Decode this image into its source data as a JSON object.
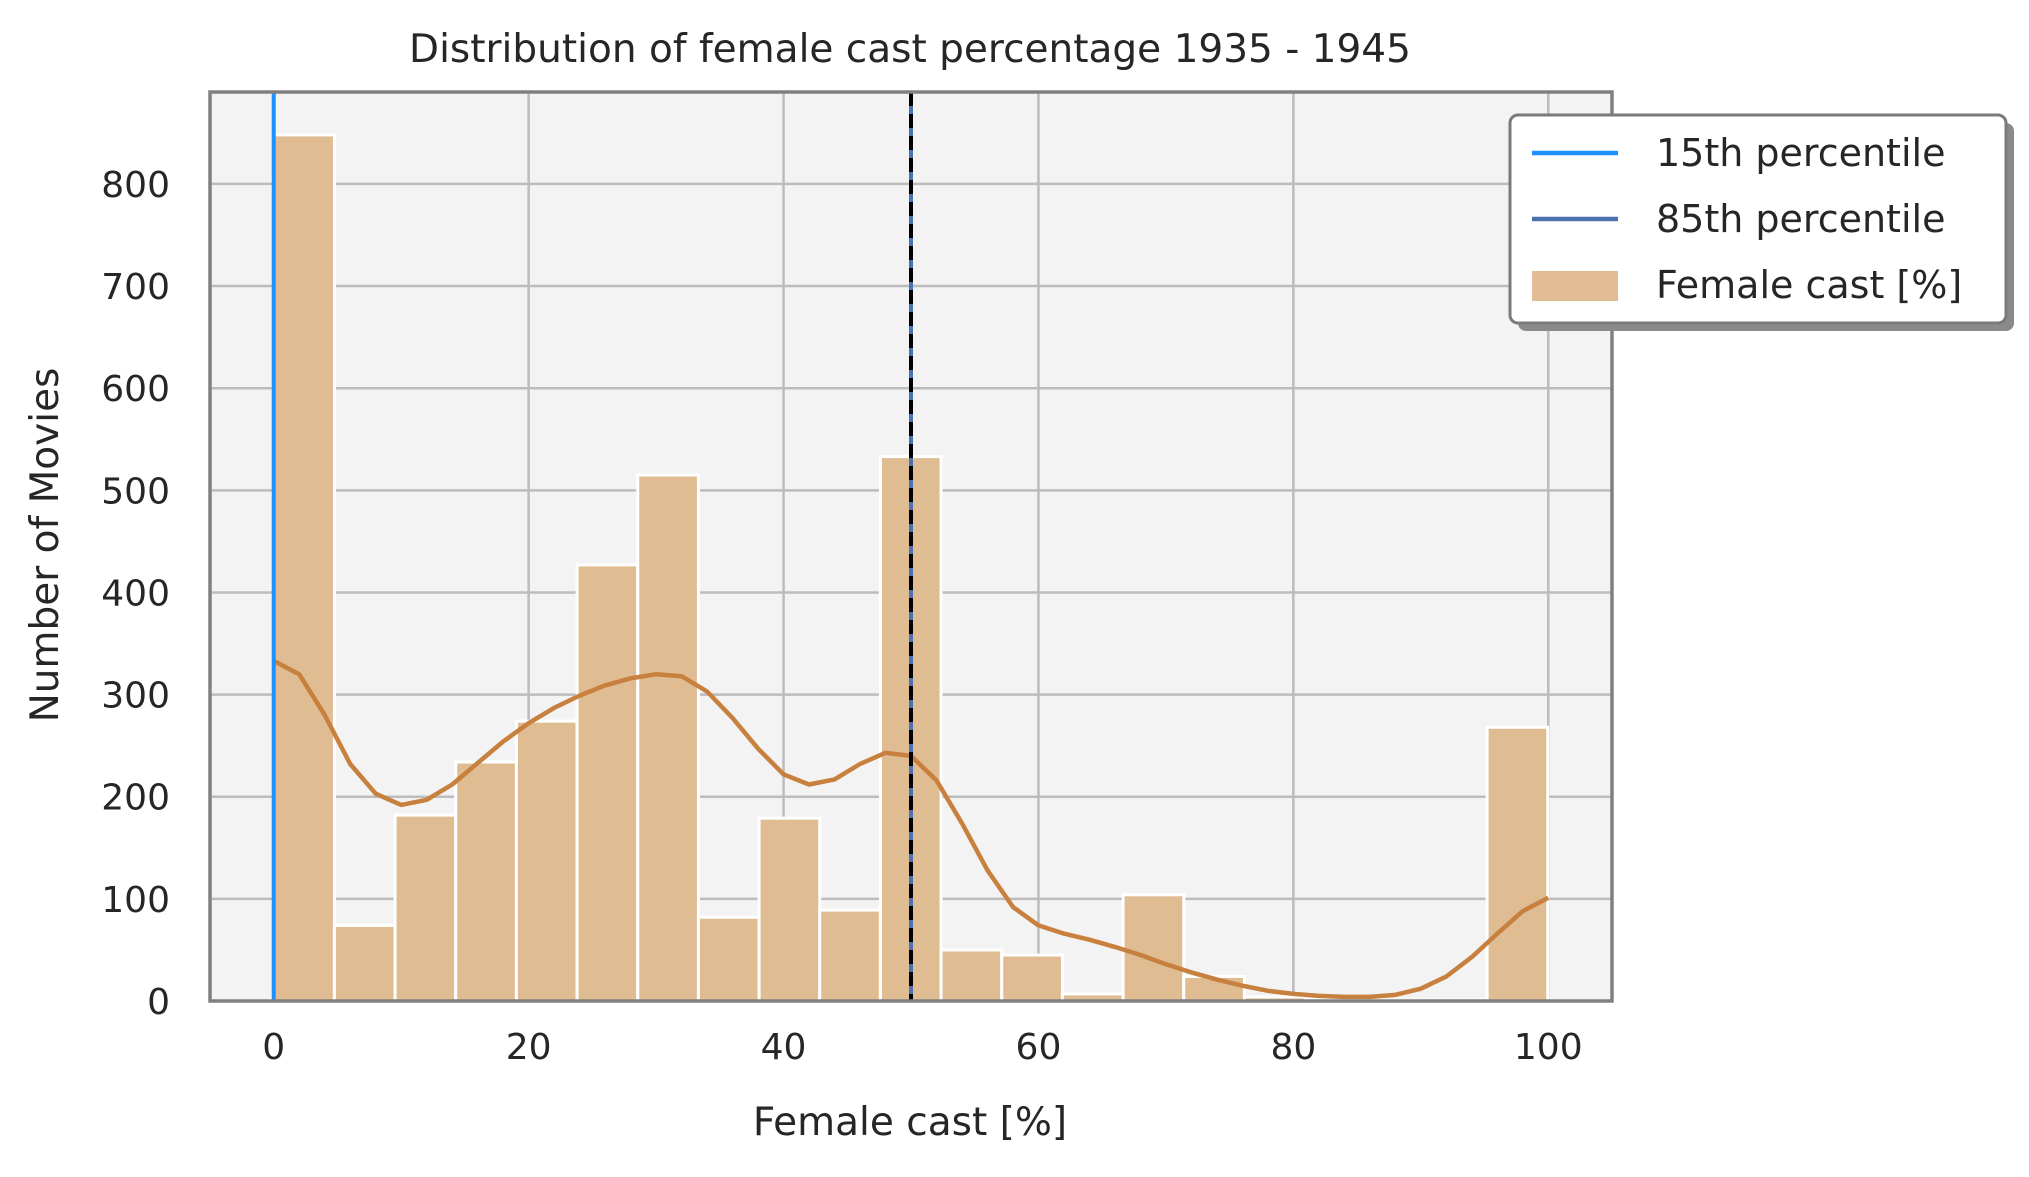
{
  "chart_data": {
    "type": "bar",
    "title": "Distribution of female cast percentage 1935 - 1945",
    "xlabel": "Female cast [%]",
    "ylabel": "Number of Movies",
    "xlim": [
      -5,
      105
    ],
    "ylim": [
      0,
      890
    ],
    "xticks": [
      0,
      20,
      40,
      60,
      80,
      100
    ],
    "yticks": [
      0,
      100,
      200,
      300,
      400,
      500,
      600,
      700,
      800
    ],
    "grid": true,
    "bin_width": 4.76,
    "bin_edges_start": 0,
    "bar_series_name": "Female cast [%]",
    "values": [
      848,
      74,
      182,
      234,
      274,
      427,
      515,
      82,
      179,
      89,
      533,
      50,
      45,
      7,
      104,
      24,
      4,
      2,
      1,
      1,
      268
    ],
    "kde": {
      "x": [
        0,
        2,
        4,
        6,
        8,
        10,
        12,
        14,
        16,
        18,
        20,
        22,
        24,
        26,
        28,
        30,
        32,
        34,
        36,
        38,
        40,
        42,
        44,
        46,
        48,
        50,
        52,
        54,
        56,
        58,
        60,
        62,
        64,
        66,
        68,
        70,
        72,
        74,
        76,
        78,
        80,
        82,
        84,
        86,
        88,
        90,
        92,
        94,
        96,
        98,
        100
      ],
      "y": [
        333,
        320,
        280,
        232,
        203,
        192,
        197,
        212,
        233,
        254,
        272,
        287,
        299,
        309,
        316,
        320,
        318,
        303,
        277,
        247,
        222,
        212,
        217,
        232,
        243,
        240,
        216,
        174,
        128,
        92,
        74,
        66,
        60,
        53,
        45,
        36,
        28,
        21,
        15,
        10,
        7,
        5,
        4,
        4,
        6,
        12,
        24,
        43,
        66,
        88,
        101
      ]
    },
    "vlines": [
      {
        "name": "15th percentile",
        "x": 0,
        "color": "#1e90ff",
        "style": "solid"
      },
      {
        "name": "85th percentile",
        "x": 50,
        "color": "#4a72b0",
        "style": "solid"
      },
      {
        "name": "",
        "x": 50,
        "color": "#000000",
        "style": "dashed"
      }
    ],
    "legend": {
      "placement": "upper right, outside the axes",
      "entries": [
        {
          "label": "15th percentile",
          "kind": "line",
          "color": "#1e90ff"
        },
        {
          "label": "85th percentile",
          "kind": "line",
          "color": "#4a72b0"
        },
        {
          "label": "Female cast [%]",
          "kind": "patch",
          "color": "#e2bc94"
        }
      ]
    },
    "colors": {
      "bar_fill": "#e0bc93",
      "bar_edge": "#ffffff",
      "kde_line": "#c8803f",
      "plot_background": "#f3f3f3",
      "grid": "#bcbcbc",
      "axes_edge": "#808080"
    }
  }
}
